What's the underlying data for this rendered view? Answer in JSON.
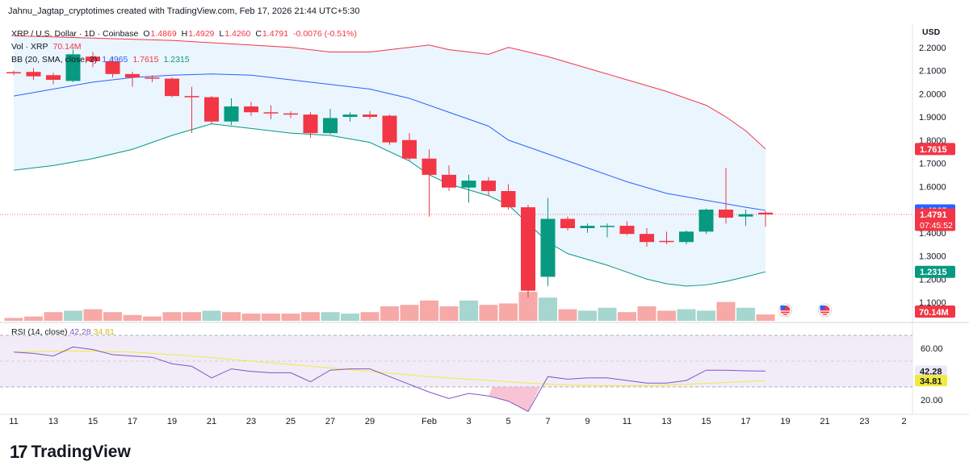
{
  "credit": "Jahnu_Jagtap_cryptotimes created with TradingView.com, Feb 17, 2026 21:44 UTC+5:30",
  "legend": {
    "symbol": "XRP / U.S. Dollar · 1D · Coinbase",
    "o_label": "O",
    "o": "1.4869",
    "h_label": "H",
    "h": "1.4929",
    "l_label": "L",
    "l": "1.4260",
    "c_label": "C",
    "c": "1.4791",
    "change": "-0.0076 (-0.51%)",
    "vol_label": "Vol · XRP",
    "vol": "70.14M",
    "bb_label": "BB (20, SMA, close, 2)",
    "bb_mid": "1.4965",
    "bb_upper": "1.7615",
    "bb_lower": "1.2315"
  },
  "rsi_legend": {
    "label": "RSI (14, close)",
    "rsi": "42.28",
    "ma": "34.81"
  },
  "currency": "USD",
  "logo": {
    "mark": "17",
    "text": "TradingView"
  },
  "colors": {
    "up": "#089981",
    "down": "#f23645",
    "vol_up": "#a5d6cf",
    "vol_down": "#f7a9a7",
    "bb_basis": "#2962ff",
    "bb_upper": "#f23645",
    "bb_lower": "#089981",
    "bb_fill": "#e3f2fd",
    "rsi_line": "#7e57c2",
    "rsi_ma": "#f2ea3e",
    "rsi_fill": "#ede7f6"
  },
  "chart_data": {
    "type": "candlestick",
    "title": "XRP / U.S. Dollar · 1D · Coinbase",
    "price_range": [
      1.02,
      2.3
    ],
    "price_ticks": [
      "2.2000",
      "2.1000",
      "2.0000",
      "1.9000",
      "1.8000",
      "1.7000",
      "1.6000",
      "1.5000",
      "1.4000",
      "1.3000",
      "1.2000",
      "1.1000"
    ],
    "x_ticks": [
      {
        "d": 0,
        "label": "11"
      },
      {
        "d": 2,
        "label": "13"
      },
      {
        "d": 4,
        "label": "15"
      },
      {
        "d": 6,
        "label": "17"
      },
      {
        "d": 8,
        "label": "19"
      },
      {
        "d": 10,
        "label": "21"
      },
      {
        "d": 12,
        "label": "23"
      },
      {
        "d": 14,
        "label": "25"
      },
      {
        "d": 16,
        "label": "27"
      },
      {
        "d": 18,
        "label": "29"
      },
      {
        "d": 21,
        "label": "Feb"
      },
      {
        "d": 23,
        "label": "3"
      },
      {
        "d": 25,
        "label": "5"
      },
      {
        "d": 27,
        "label": "7"
      },
      {
        "d": 29,
        "label": "9"
      },
      {
        "d": 31,
        "label": "11"
      },
      {
        "d": 33,
        "label": "13"
      },
      {
        "d": 35,
        "label": "15"
      },
      {
        "d": 37,
        "label": "17"
      },
      {
        "d": 39,
        "label": "19"
      },
      {
        "d": 41,
        "label": "21"
      },
      {
        "d": 43,
        "label": "23"
      },
      {
        "d": 45,
        "label": "2"
      }
    ],
    "candles": [
      {
        "d": 0,
        "o": 2.093,
        "h": 2.1,
        "l": 2.08,
        "c": 2.09
      },
      {
        "d": 1,
        "o": 2.094,
        "h": 2.11,
        "l": 2.06,
        "c": 2.075
      },
      {
        "d": 2,
        "o": 2.08,
        "h": 2.09,
        "l": 2.04,
        "c": 2.06
      },
      {
        "d": 3,
        "o": 2.055,
        "h": 2.19,
        "l": 2.05,
        "c": 2.17
      },
      {
        "d": 4,
        "o": 2.16,
        "h": 2.18,
        "l": 2.115,
        "c": 2.14
      },
      {
        "d": 5,
        "o": 2.14,
        "h": 2.16,
        "l": 2.07,
        "c": 2.085
      },
      {
        "d": 6,
        "o": 2.085,
        "h": 2.095,
        "l": 2.03,
        "c": 2.07
      },
      {
        "d": 7,
        "o": 2.07,
        "h": 2.08,
        "l": 2.05,
        "c": 2.065
      },
      {
        "d": 8,
        "o": 2.065,
        "h": 2.07,
        "l": 1.985,
        "c": 1.99
      },
      {
        "d": 9,
        "o": 1.99,
        "h": 2.03,
        "l": 1.83,
        "c": 1.985
      },
      {
        "d": 10,
        "o": 1.985,
        "h": 1.99,
        "l": 1.87,
        "c": 1.88
      },
      {
        "d": 11,
        "o": 1.88,
        "h": 1.98,
        "l": 1.865,
        "c": 1.945
      },
      {
        "d": 12,
        "o": 1.945,
        "h": 1.965,
        "l": 1.905,
        "c": 1.92
      },
      {
        "d": 13,
        "o": 1.92,
        "h": 1.95,
        "l": 1.89,
        "c": 1.915
      },
      {
        "d": 14,
        "o": 1.915,
        "h": 1.925,
        "l": 1.895,
        "c": 1.91
      },
      {
        "d": 15,
        "o": 1.91,
        "h": 1.92,
        "l": 1.81,
        "c": 1.83
      },
      {
        "d": 16,
        "o": 1.83,
        "h": 1.935,
        "l": 1.825,
        "c": 1.895
      },
      {
        "d": 17,
        "o": 1.9,
        "h": 1.92,
        "l": 1.88,
        "c": 1.91
      },
      {
        "d": 18,
        "o": 1.91,
        "h": 1.925,
        "l": 1.89,
        "c": 1.9
      },
      {
        "d": 19,
        "o": 1.905,
        "h": 1.91,
        "l": 1.78,
        "c": 1.79
      },
      {
        "d": 20,
        "o": 1.8,
        "h": 1.83,
        "l": 1.71,
        "c": 1.72
      },
      {
        "d": 21,
        "o": 1.72,
        "h": 1.76,
        "l": 1.47,
        "c": 1.65
      },
      {
        "d": 22,
        "o": 1.65,
        "h": 1.69,
        "l": 1.58,
        "c": 1.595
      },
      {
        "d": 23,
        "o": 1.595,
        "h": 1.65,
        "l": 1.53,
        "c": 1.625
      },
      {
        "d": 24,
        "o": 1.625,
        "h": 1.64,
        "l": 1.56,
        "c": 1.58
      },
      {
        "d": 25,
        "o": 1.58,
        "h": 1.61,
        "l": 1.5,
        "c": 1.51
      },
      {
        "d": 26,
        "o": 1.51,
        "h": 1.52,
        "l": 1.12,
        "c": 1.15
      },
      {
        "d": 27,
        "o": 1.21,
        "h": 1.55,
        "l": 1.17,
        "c": 1.46
      },
      {
        "d": 28,
        "o": 1.46,
        "h": 1.47,
        "l": 1.41,
        "c": 1.42
      },
      {
        "d": 29,
        "o": 1.42,
        "h": 1.44,
        "l": 1.4,
        "c": 1.43
      },
      {
        "d": 30,
        "o": 1.425,
        "h": 1.44,
        "l": 1.38,
        "c": 1.43
      },
      {
        "d": 31,
        "o": 1.43,
        "h": 1.45,
        "l": 1.39,
        "c": 1.395
      },
      {
        "d": 32,
        "o": 1.395,
        "h": 1.42,
        "l": 1.34,
        "c": 1.36
      },
      {
        "d": 33,
        "o": 1.365,
        "h": 1.405,
        "l": 1.35,
        "c": 1.36
      },
      {
        "d": 34,
        "o": 1.36,
        "h": 1.41,
        "l": 1.35,
        "c": 1.405
      },
      {
        "d": 35,
        "o": 1.405,
        "h": 1.505,
        "l": 1.395,
        "c": 1.5
      },
      {
        "d": 36,
        "o": 1.5,
        "h": 1.68,
        "l": 1.44,
        "c": 1.465
      },
      {
        "d": 37,
        "o": 1.47,
        "h": 1.5,
        "l": 1.43,
        "c": 1.48
      },
      {
        "d": 38,
        "o": 1.4869,
        "h": 1.4929,
        "l": 1.426,
        "c": 1.4791
      }
    ],
    "volume": [
      {
        "d": 0,
        "v": 0.1,
        "up": false
      },
      {
        "d": 1,
        "v": 0.15,
        "up": false
      },
      {
        "d": 2,
        "v": 0.3,
        "up": false
      },
      {
        "d": 3,
        "v": 0.35,
        "up": true
      },
      {
        "d": 4,
        "v": 0.4,
        "up": false
      },
      {
        "d": 5,
        "v": 0.3,
        "up": false
      },
      {
        "d": 6,
        "v": 0.2,
        "up": false
      },
      {
        "d": 7,
        "v": 0.15,
        "up": false
      },
      {
        "d": 8,
        "v": 0.3,
        "up": false
      },
      {
        "d": 9,
        "v": 0.3,
        "up": false
      },
      {
        "d": 10,
        "v": 0.35,
        "up": true
      },
      {
        "d": 11,
        "v": 0.3,
        "up": false
      },
      {
        "d": 12,
        "v": 0.25,
        "up": false
      },
      {
        "d": 13,
        "v": 0.25,
        "up": false
      },
      {
        "d": 14,
        "v": 0.25,
        "up": false
      },
      {
        "d": 15,
        "v": 0.3,
        "up": false
      },
      {
        "d": 16,
        "v": 0.3,
        "up": true
      },
      {
        "d": 17,
        "v": 0.25,
        "up": true
      },
      {
        "d": 18,
        "v": 0.3,
        "up": false
      },
      {
        "d": 19,
        "v": 0.5,
        "up": false
      },
      {
        "d": 20,
        "v": 0.55,
        "up": false
      },
      {
        "d": 21,
        "v": 0.7,
        "up": false
      },
      {
        "d": 22,
        "v": 0.5,
        "up": false
      },
      {
        "d": 23,
        "v": 0.7,
        "up": true
      },
      {
        "d": 24,
        "v": 0.55,
        "up": false
      },
      {
        "d": 25,
        "v": 0.6,
        "up": false
      },
      {
        "d": 26,
        "v": 1.0,
        "up": false
      },
      {
        "d": 27,
        "v": 0.8,
        "up": true
      },
      {
        "d": 28,
        "v": 0.4,
        "up": false
      },
      {
        "d": 29,
        "v": 0.35,
        "up": true
      },
      {
        "d": 30,
        "v": 0.45,
        "up": true
      },
      {
        "d": 31,
        "v": 0.3,
        "up": false
      },
      {
        "d": 32,
        "v": 0.5,
        "up": false
      },
      {
        "d": 33,
        "v": 0.35,
        "up": false
      },
      {
        "d": 34,
        "v": 0.4,
        "up": true
      },
      {
        "d": 35,
        "v": 0.35,
        "up": true
      },
      {
        "d": 36,
        "v": 0.65,
        "up": false
      },
      {
        "d": 37,
        "v": 0.45,
        "up": true
      },
      {
        "d": 38,
        "v": 0.22,
        "up": false
      }
    ],
    "bb_upper": [
      [
        0,
        2.25
      ],
      [
        4,
        2.24
      ],
      [
        8,
        2.23
      ],
      [
        12,
        2.21
      ],
      [
        14,
        2.2
      ],
      [
        16,
        2.18
      ],
      [
        18,
        2.18
      ],
      [
        20,
        2.2
      ],
      [
        21,
        2.21
      ],
      [
        22,
        2.19
      ],
      [
        24,
        2.17
      ],
      [
        25,
        2.2
      ],
      [
        27,
        2.16
      ],
      [
        29,
        2.11
      ],
      [
        31,
        2.06
      ],
      [
        33,
        2.01
      ],
      [
        35,
        1.95
      ],
      [
        36,
        1.9
      ],
      [
        37,
        1.84
      ],
      [
        38,
        1.7615
      ]
    ],
    "bb_basis": [
      [
        0,
        1.99
      ],
      [
        2,
        2.02
      ],
      [
        4,
        2.05
      ],
      [
        6,
        2.07
      ],
      [
        8,
        2.08
      ],
      [
        10,
        2.085
      ],
      [
        12,
        2.08
      ],
      [
        14,
        2.06
      ],
      [
        16,
        2.04
      ],
      [
        18,
        2.02
      ],
      [
        20,
        1.98
      ],
      [
        22,
        1.92
      ],
      [
        24,
        1.86
      ],
      [
        25,
        1.8
      ],
      [
        27,
        1.74
      ],
      [
        29,
        1.68
      ],
      [
        31,
        1.62
      ],
      [
        33,
        1.57
      ],
      [
        35,
        1.54
      ],
      [
        37,
        1.51
      ],
      [
        38,
        1.4965
      ]
    ],
    "bb_lower": [
      [
        0,
        1.67
      ],
      [
        2,
        1.69
      ],
      [
        4,
        1.72
      ],
      [
        6,
        1.76
      ],
      [
        8,
        1.82
      ],
      [
        10,
        1.87
      ],
      [
        11,
        1.86
      ],
      [
        12,
        1.85
      ],
      [
        14,
        1.83
      ],
      [
        16,
        1.82
      ],
      [
        18,
        1.79
      ],
      [
        20,
        1.71
      ],
      [
        21,
        1.65
      ],
      [
        22,
        1.61
      ],
      [
        24,
        1.56
      ],
      [
        25,
        1.52
      ],
      [
        26,
        1.44
      ],
      [
        27,
        1.36
      ],
      [
        28,
        1.31
      ],
      [
        30,
        1.26
      ],
      [
        32,
        1.2
      ],
      [
        33,
        1.18
      ],
      [
        34,
        1.17
      ],
      [
        35,
        1.175
      ],
      [
        36,
        1.19
      ],
      [
        37,
        1.21
      ],
      [
        38,
        1.2315
      ]
    ],
    "rsi_range": [
      10,
      75
    ],
    "rsi_ticks": [
      "60.00",
      "20.00"
    ],
    "rsi_band": [
      30,
      70
    ],
    "rsi": [
      [
        0,
        57
      ],
      [
        1,
        56
      ],
      [
        2,
        54
      ],
      [
        3,
        61
      ],
      [
        4,
        59
      ],
      [
        5,
        55
      ],
      [
        6,
        54
      ],
      [
        7,
        53
      ],
      [
        8,
        48
      ],
      [
        9,
        46
      ],
      [
        10,
        37
      ],
      [
        11,
        44
      ],
      [
        12,
        42
      ],
      [
        13,
        41
      ],
      [
        14,
        41
      ],
      [
        15,
        34
      ],
      [
        16,
        43
      ],
      [
        17,
        44
      ],
      [
        18,
        44
      ],
      [
        19,
        38
      ],
      [
        20,
        32
      ],
      [
        21,
        26
      ],
      [
        22,
        21
      ],
      [
        23,
        25
      ],
      [
        24,
        23
      ],
      [
        25,
        19
      ],
      [
        26,
        11
      ],
      [
        27,
        38
      ],
      [
        28,
        36
      ],
      [
        29,
        37
      ],
      [
        30,
        37
      ],
      [
        31,
        35
      ],
      [
        32,
        33
      ],
      [
        33,
        33
      ],
      [
        34,
        35
      ],
      [
        35,
        43
      ],
      [
        36,
        43
      ],
      [
        37,
        42.5
      ],
      [
        38,
        42.28
      ]
    ],
    "rsi_ma": [
      [
        0,
        57
      ],
      [
        3,
        58
      ],
      [
        6,
        57
      ],
      [
        9,
        54
      ],
      [
        12,
        50
      ],
      [
        15,
        46
      ],
      [
        18,
        42
      ],
      [
        21,
        38
      ],
      [
        24,
        35
      ],
      [
        26,
        33
      ],
      [
        28,
        31.5
      ],
      [
        30,
        31
      ],
      [
        32,
        31
      ],
      [
        34,
        32
      ],
      [
        36,
        33.5
      ],
      [
        38,
        34.81
      ]
    ],
    "price_labels": [
      {
        "p": 1.7615,
        "text": "1.7615",
        "color": "#f23645"
      },
      {
        "p": 1.4965,
        "text": "1.4965",
        "color": "#2962ff"
      },
      {
        "p": 1.4791,
        "text": "1.4791",
        "color": "#f23645",
        "sub": "07:45:52"
      },
      {
        "p": 1.2315,
        "text": "1.2315",
        "color": "#089981"
      }
    ],
    "vol_label": "70.14M",
    "rsi_labels": [
      {
        "v": 42.28,
        "text": "42.28",
        "color": "#ede7f6",
        "fg": "#131722"
      },
      {
        "v": 34.81,
        "text": "34.81",
        "color": "#f2ea3e",
        "fg": "#131722"
      }
    ],
    "event_flags": [
      {
        "d": 39
      },
      {
        "d": 41
      }
    ]
  }
}
